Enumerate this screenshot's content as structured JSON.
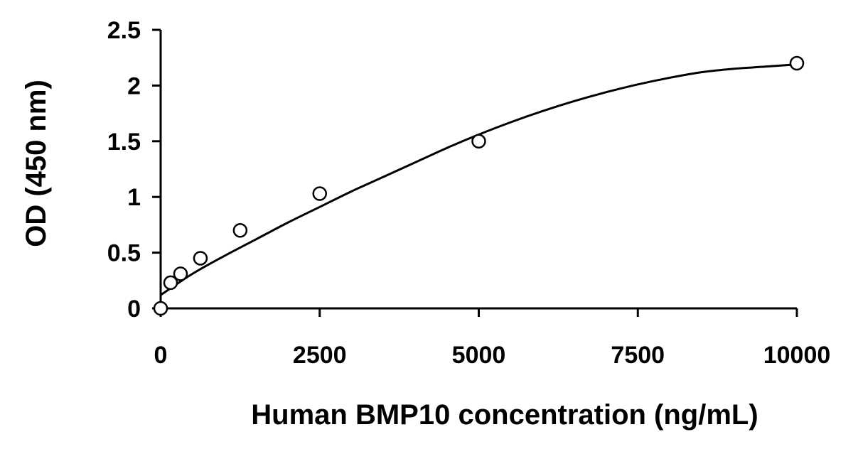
{
  "chart_data": {
    "type": "scatter",
    "xlabel": "Human BMP10 concentration (ng/mL)",
    "ylabel": "OD (450 nm)",
    "xlim": [
      0,
      10000
    ],
    "ylim": [
      0,
      2.5
    ],
    "x_ticks": [
      "0",
      "2500",
      "5000",
      "7500",
      "10000"
    ],
    "y_ticks": [
      "0",
      "0.5",
      "1",
      "1.5",
      "2",
      "2.5"
    ],
    "grid": false,
    "legend": "none",
    "series": [
      {
        "marker": "open-circle",
        "color": "#000000",
        "points": [
          {
            "x": 0,
            "y": 0.0
          },
          {
            "x": 156.25,
            "y": 0.23
          },
          {
            "x": 312.5,
            "y": 0.31
          },
          {
            "x": 625,
            "y": 0.45
          },
          {
            "x": 1250,
            "y": 0.7
          },
          {
            "x": 2500,
            "y": 1.03
          },
          {
            "x": 5000,
            "y": 1.5
          },
          {
            "x": 10000,
            "y": 2.2
          }
        ]
      }
    ],
    "fit_curve": {
      "color": "#000000",
      "x": [
        0,
        500,
        1000,
        1500,
        2000,
        2500,
        3000,
        3500,
        4000,
        4500,
        5000,
        5500,
        6000,
        6500,
        7000,
        7500,
        8000,
        8500,
        9000,
        9500,
        10000
      ],
      "y": [
        0.12,
        0.31,
        0.47,
        0.62,
        0.77,
        0.91,
        1.05,
        1.18,
        1.31,
        1.44,
        1.56,
        1.67,
        1.77,
        1.86,
        1.94,
        2.01,
        2.07,
        2.12,
        2.15,
        2.17,
        2.19
      ]
    }
  }
}
